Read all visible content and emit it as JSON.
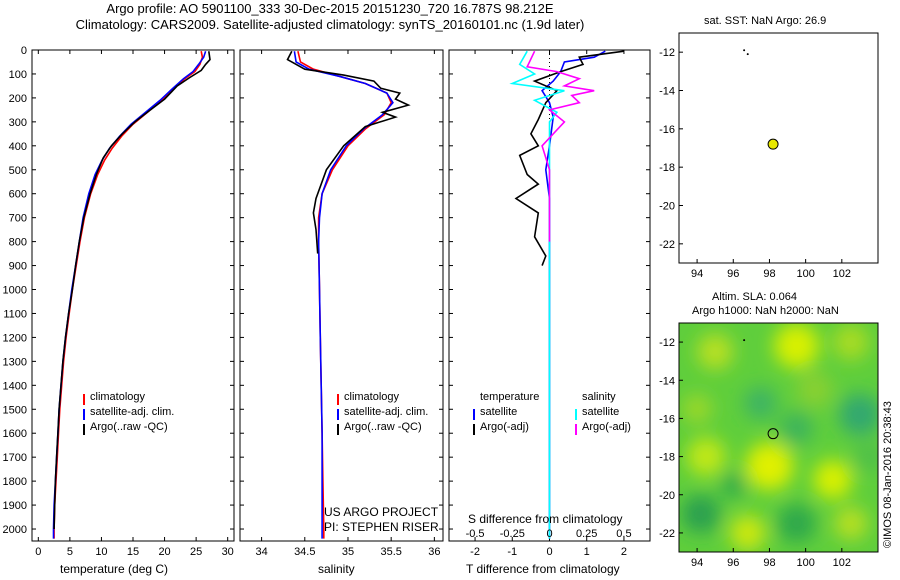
{
  "header": {
    "line1": "Argo profile: AO 5901100_333 30-Dec-2015 20151230_720 16.787S 98.212E",
    "line2": "Climatology: CARS2009. Satellite-adjusted climatology: synTS_20160101.nc (1.9d later)"
  },
  "credit": "©IMOS 08-Jan-2016 20:38:43",
  "project": {
    "line1": "US ARGO PROJECT",
    "line2": "PI: STEPHEN RISER"
  },
  "colors": {
    "clim": "#ff0000",
    "sat": "#0000ff",
    "argo": "#000000",
    "sal_sat": "#00ffff",
    "sal_argo": "#ff00ff",
    "marker": "#e8e800"
  },
  "chart_data": [
    {
      "type": "line",
      "name": "temperature",
      "xlabel": "temperature (deg C)",
      "xlim": [
        -1,
        31
      ],
      "xticks": [
        0,
        5,
        10,
        15,
        20,
        25,
        30
      ],
      "ylim": [
        0,
        2050
      ],
      "yticks": [
        0,
        100,
        200,
        300,
        400,
        500,
        600,
        700,
        800,
        900,
        1000,
        1100,
        1200,
        1300,
        1400,
        1500,
        1600,
        1700,
        1800,
        1900,
        2000
      ],
      "legend": [
        "climatology",
        "satellite-adj. clim.",
        "Argo(..raw -QC)"
      ],
      "series": [
        {
          "name": "climatology",
          "color": "clim",
          "points": [
            [
              25.8,
              5
            ],
            [
              26,
              30
            ],
            [
              25.6,
              60
            ],
            [
              24.8,
              90
            ],
            [
              23.2,
              120
            ],
            [
              21.5,
              160
            ],
            [
              19.5,
              210
            ],
            [
              17.3,
              260
            ],
            [
              15,
              310
            ],
            [
              13.2,
              360
            ],
            [
              11.7,
              410
            ],
            [
              10.5,
              460
            ],
            [
              9.4,
              520
            ],
            [
              8.3,
              600
            ],
            [
              7.3,
              700
            ],
            [
              6.6,
              800
            ],
            [
              6,
              900
            ],
            [
              5.4,
              1000
            ],
            [
              4.9,
              1100
            ],
            [
              4.4,
              1200
            ],
            [
              4,
              1300
            ],
            [
              3.7,
              1400
            ],
            [
              3.4,
              1500
            ],
            [
              3.2,
              1600
            ],
            [
              3,
              1700
            ],
            [
              2.8,
              1800
            ],
            [
              2.6,
              1900
            ],
            [
              2.5,
              2000
            ],
            [
              2.5,
              2040
            ]
          ]
        },
        {
          "name": "satellite-adj. clim.",
          "color": "sat",
          "points": [
            [
              26.5,
              5
            ],
            [
              26.2,
              30
            ],
            [
              25.4,
              60
            ],
            [
              24.5,
              90
            ],
            [
              23,
              120
            ],
            [
              21.3,
              160
            ],
            [
              19.3,
              210
            ],
            [
              17,
              260
            ],
            [
              14.7,
              310
            ],
            [
              12.9,
              360
            ],
            [
              11.3,
              410
            ],
            [
              10.1,
              460
            ],
            [
              9,
              520
            ],
            [
              8,
              600
            ],
            [
              7.1,
              700
            ],
            [
              6.5,
              800
            ],
            [
              5.9,
              900
            ],
            [
              5.3,
              1000
            ],
            [
              4.8,
              1100
            ],
            [
              4.3,
              1200
            ],
            [
              3.9,
              1300
            ],
            [
              3.6,
              1400
            ],
            [
              3.3,
              1500
            ],
            [
              3.1,
              1600
            ],
            [
              2.9,
              1700
            ],
            [
              2.7,
              1800
            ],
            [
              2.5,
              1900
            ],
            [
              2.4,
              2000
            ],
            [
              2.4,
              2040
            ]
          ]
        },
        {
          "name": "Argo(..raw -QC)",
          "color": "argo",
          "points": [
            [
              27,
              5
            ],
            [
              27.2,
              40
            ],
            [
              26.5,
              60
            ],
            [
              25.8,
              85
            ],
            [
              24,
              115
            ],
            [
              22,
              150
            ],
            [
              20,
              205
            ],
            [
              17.5,
              255
            ],
            [
              15.3,
              300
            ],
            [
              13.3,
              350
            ],
            [
              11.6,
              400
            ],
            [
              10.3,
              450
            ],
            [
              9.2,
              520
            ],
            [
              8.2,
              600
            ],
            [
              7.2,
              700
            ],
            [
              6.5,
              800
            ],
            [
              5.9,
              900
            ],
            [
              5.4,
              1000
            ],
            [
              4.8,
              1100
            ],
            [
              4.3,
              1200
            ],
            [
              3.9,
              1300
            ],
            [
              3.6,
              1400
            ],
            [
              3.3,
              1500
            ],
            [
              3.1,
              1600
            ],
            [
              2.9,
              1700
            ],
            [
              2.7,
              1800
            ],
            [
              2.6,
              1900
            ],
            [
              2.5,
              2000
            ]
          ]
        }
      ]
    },
    {
      "type": "line",
      "name": "salinity",
      "xlabel": "salinity",
      "xlim": [
        33.75,
        36.1
      ],
      "xticks": [
        34,
        34.5,
        35,
        35.5,
        36
      ],
      "ylim": [
        0,
        2050
      ],
      "legend": [
        "climatology",
        "satellite-adj. clim.",
        "Argo(..raw -QC)"
      ],
      "series": [
        {
          "name": "climatology",
          "color": "clim",
          "points": [
            [
              34.42,
              5
            ],
            [
              34.45,
              50
            ],
            [
              34.6,
              80
            ],
            [
              34.9,
              110
            ],
            [
              35.2,
              140
            ],
            [
              35.45,
              180
            ],
            [
              35.5,
              220
            ],
            [
              35.42,
              270
            ],
            [
              35.2,
              330
            ],
            [
              35,
              400
            ],
            [
              34.82,
              500
            ],
            [
              34.7,
              600
            ],
            [
              34.66,
              700
            ],
            [
              34.66,
              800
            ],
            [
              34.67,
              1000
            ],
            [
              34.68,
              1200
            ],
            [
              34.69,
              1400
            ],
            [
              34.7,
              1600
            ],
            [
              34.71,
              1800
            ],
            [
              34.72,
              2000
            ],
            [
              34.72,
              2040
            ]
          ]
        },
        {
          "name": "satellite-adj. clim.",
          "color": "sat",
          "points": [
            [
              34.38,
              5
            ],
            [
              34.4,
              50
            ],
            [
              34.55,
              80
            ],
            [
              34.9,
              110
            ],
            [
              35.2,
              140
            ],
            [
              35.45,
              180
            ],
            [
              35.52,
              220
            ],
            [
              35.4,
              270
            ],
            [
              35.18,
              330
            ],
            [
              34.98,
              400
            ],
            [
              34.8,
              500
            ],
            [
              34.7,
              600
            ],
            [
              34.67,
              700
            ],
            [
              34.66,
              800
            ],
            [
              34.67,
              1000
            ],
            [
              34.68,
              1200
            ],
            [
              34.69,
              1400
            ],
            [
              34.7,
              1600
            ],
            [
              34.7,
              1800
            ],
            [
              34.7,
              2000
            ],
            [
              34.7,
              2040
            ]
          ]
        },
        {
          "name": "Argo(..raw -QC)",
          "color": "argo",
          "points": [
            [
              34.35,
              5
            ],
            [
              34.3,
              40
            ],
            [
              34.5,
              80
            ],
            [
              34.95,
              105
            ],
            [
              35.3,
              130
            ],
            [
              35.38,
              160
            ],
            [
              35.6,
              180
            ],
            [
              35.55,
              205
            ],
            [
              35.7,
              230
            ],
            [
              35.4,
              260
            ],
            [
              35.55,
              280
            ],
            [
              35.2,
              320
            ],
            [
              34.95,
              400
            ],
            [
              34.75,
              500
            ],
            [
              34.63,
              620
            ],
            [
              34.6,
              680
            ],
            [
              34.63,
              750
            ],
            [
              34.65,
              850
            ]
          ]
        }
      ]
    },
    {
      "type": "line",
      "name": "difference from climatology",
      "xlabel": "T difference from climatology",
      "toplabel": "S difference from climatology",
      "xlim": [
        -2.7,
        2.7
      ],
      "xticks": [
        -2,
        -1,
        0,
        1,
        2
      ],
      "s_ticks": [
        -0.5,
        -0.25,
        0,
        0.25,
        0.5
      ],
      "legend": {
        "temperature": "temperature",
        "salinity": "salinity",
        "items": [
          "satellite",
          "Argo(-adj)",
          "satellite",
          "Argo(-adj)"
        ]
      },
      "series": [
        {
          "name": "T satellite",
          "color": "sat",
          "points": [
            [
              1.5,
              5
            ],
            [
              1.2,
              30
            ],
            [
              0.4,
              50
            ],
            [
              0.3,
              90
            ],
            [
              0.1,
              130
            ],
            [
              -0.2,
              170
            ],
            [
              0,
              220
            ],
            [
              0.1,
              280
            ],
            [
              0,
              400
            ],
            [
              -0.1,
              500
            ],
            [
              0,
              620
            ],
            [
              0,
              800
            ],
            [
              0,
              1200
            ],
            [
              0,
              1600
            ],
            [
              0,
              2040
            ]
          ]
        },
        {
          "name": "T Argo(-adj)",
          "color": "argo",
          "points": [
            [
              2,
              5
            ],
            [
              0.8,
              30
            ],
            [
              0.9,
              60
            ],
            [
              0.3,
              90
            ],
            [
              -0.4,
              130
            ],
            [
              0.2,
              170
            ],
            [
              -0.1,
              220
            ],
            [
              -0.3,
              290
            ],
            [
              -0.5,
              350
            ],
            [
              -0.3,
              400
            ],
            [
              -0.8,
              440
            ],
            [
              -0.6,
              520
            ],
            [
              -0.3,
              560
            ],
            [
              -0.9,
              620
            ],
            [
              -0.3,
              680
            ],
            [
              -0.4,
              780
            ],
            [
              -0.1,
              860
            ],
            [
              -0.2,
              900
            ]
          ]
        },
        {
          "name": "S satellite",
          "color": "sal_sat",
          "points": [
            [
              -0.15,
              5
            ],
            [
              -0.2,
              60
            ],
            [
              -0.1,
              100
            ],
            [
              -0.25,
              140
            ],
            [
              0.1,
              170
            ],
            [
              -0.1,
              210
            ],
            [
              0.05,
              260
            ],
            [
              0,
              300
            ],
            [
              0,
              1000
            ],
            [
              0,
              2040
            ]
          ]
        },
        {
          "name": "S Argo(-adj)",
          "color": "sal_argo",
          "points": [
            [
              -0.1,
              5
            ],
            [
              -0.15,
              70
            ],
            [
              0.05,
              90
            ],
            [
              0.2,
              120
            ],
            [
              0.1,
              150
            ],
            [
              0.3,
              170
            ],
            [
              0.15,
              190
            ],
            [
              0.2,
              220
            ],
            [
              0,
              250
            ],
            [
              0.1,
              300
            ],
            [
              -0.05,
              400
            ],
            [
              0,
              500
            ],
            [
              0,
              800
            ]
          ]
        }
      ]
    },
    {
      "type": "scatter",
      "name": "SST map",
      "title": "sat. SST: NaN Argo: 26.9",
      "xlim": [
        93,
        104
      ],
      "ylim": [
        -23,
        -11
      ],
      "xticks": [
        94,
        96,
        98,
        100,
        102
      ],
      "yticks": [
        -12,
        -14,
        -16,
        -18,
        -20,
        -22
      ],
      "points": [
        {
          "x": 98.2,
          "y": -16.8,
          "label": "Argo"
        },
        {
          "x": 96.6,
          "y": -11.9,
          "label": "track"
        },
        {
          "x": 96.8,
          "y": -12.1,
          "label": "track"
        }
      ]
    },
    {
      "type": "heatmap",
      "name": "SLA map",
      "title": "Altim. SLA: 0.064",
      "subtitle": "Argo h1000: NaN h2000: NaN",
      "xlim": [
        93,
        104
      ],
      "ylim": [
        -23,
        -11
      ],
      "xticks": [
        94,
        96,
        98,
        100,
        102
      ],
      "yticks": [
        -12,
        -14,
        -16,
        -18,
        -20,
        -22
      ],
      "points": [
        {
          "x": 98.2,
          "y": -16.8,
          "label": "Argo"
        },
        {
          "x": 96.6,
          "y": -11.9,
          "label": "track"
        }
      ]
    }
  ]
}
